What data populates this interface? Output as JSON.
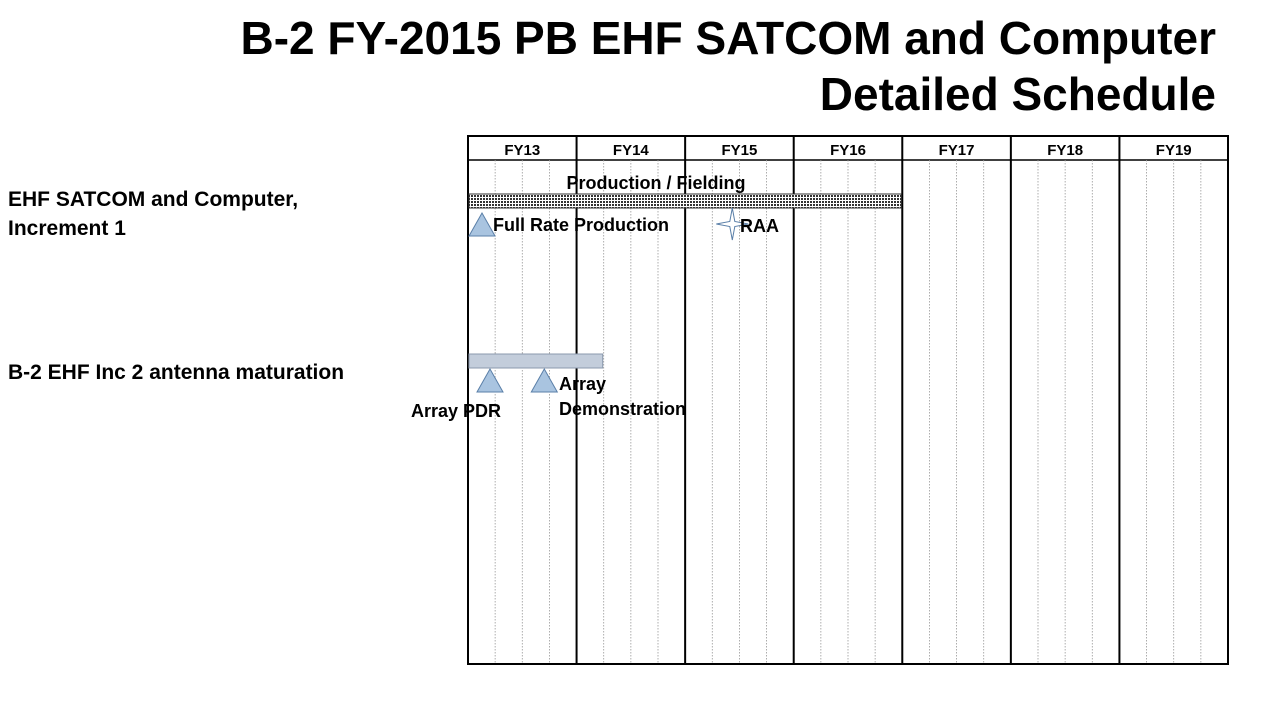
{
  "title": {
    "line1": "B-2 FY-2015 PB EHF SATCOM and Computer",
    "line2": "Detailed Schedule"
  },
  "rows": [
    {
      "label_line1": "EHF SATCOM and Computer,",
      "label_line2": "Increment 1"
    },
    {
      "label_line1": "B-2 EHF Inc 2 antenna maturation"
    }
  ],
  "chart_data": {
    "type": "gantt",
    "years": [
      "FY13",
      "FY14",
      "FY15",
      "FY16",
      "FY17",
      "FY18",
      "FY19"
    ],
    "quarters_per_year": 4,
    "colors": {
      "grid_major": "#000000",
      "grid_minor": "#999999",
      "bar_pattern": "#333333",
      "bar_plain": "#c3cddb",
      "milestone_fill": "#a9c4e0",
      "milestone_stroke": "#5a7fa8"
    },
    "bars": [
      {
        "row": 0,
        "label": "Production / Fielding",
        "start": "FY13 Q1",
        "end": "FY16 Q4",
        "style": "pattern"
      },
      {
        "row": 1,
        "label": "",
        "start": "FY13 Q1",
        "end": "FY14 Q1",
        "style": "plain"
      }
    ],
    "milestones": [
      {
        "row": 0,
        "label": "Full Rate Production",
        "date": "FY13 Q1",
        "shape": "triangle"
      },
      {
        "row": 0,
        "label": "RAA",
        "date": "FY15 Q2",
        "shape": "star"
      },
      {
        "row": 1,
        "label": "Array PDR",
        "date": "FY13 Q1",
        "shape": "triangle"
      },
      {
        "row": 1,
        "label": "Array",
        "label_line2": "Demonstration",
        "date": "FY13 Q3",
        "shape": "triangle"
      }
    ]
  }
}
